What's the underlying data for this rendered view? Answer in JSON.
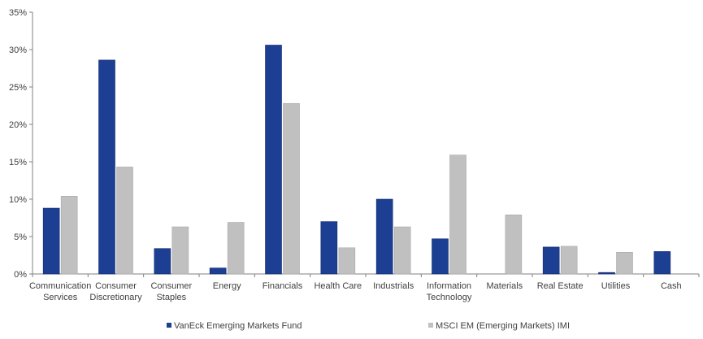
{
  "chart_data": {
    "type": "bar",
    "categories": [
      [
        "Communication",
        "Services"
      ],
      [
        "Consumer",
        "Discretionary"
      ],
      [
        "Consumer",
        "Staples"
      ],
      [
        "Energy"
      ],
      [
        "Financials"
      ],
      [
        "Health Care"
      ],
      [
        "Industrials"
      ],
      [
        "Information",
        "Technology"
      ],
      [
        "Materials"
      ],
      [
        "Real Estate"
      ],
      [
        "Utilities"
      ],
      [
        "Cash"
      ]
    ],
    "series": [
      {
        "name": "VanEck Emerging Markets Fund",
        "color": "#1c3f94",
        "values": [
          8.8,
          28.6,
          3.4,
          0.8,
          30.6,
          7.0,
          10.0,
          4.7,
          0.0,
          3.6,
          0.2,
          3.0
        ]
      },
      {
        "name": "MSCI EM (Emerging Markets) IMI",
        "color": "#c0c0c0",
        "values": [
          10.4,
          14.3,
          6.3,
          6.9,
          22.8,
          3.5,
          6.3,
          15.9,
          7.9,
          3.7,
          2.9,
          0.0
        ]
      }
    ],
    "ylim": [
      0,
      35
    ],
    "yticks": [
      "0%",
      "5%",
      "10%",
      "15%",
      "20%",
      "25%",
      "30%",
      "35%"
    ],
    "grid": false,
    "legend_position": "bottom",
    "title": "",
    "xlabel": "",
    "ylabel": ""
  }
}
